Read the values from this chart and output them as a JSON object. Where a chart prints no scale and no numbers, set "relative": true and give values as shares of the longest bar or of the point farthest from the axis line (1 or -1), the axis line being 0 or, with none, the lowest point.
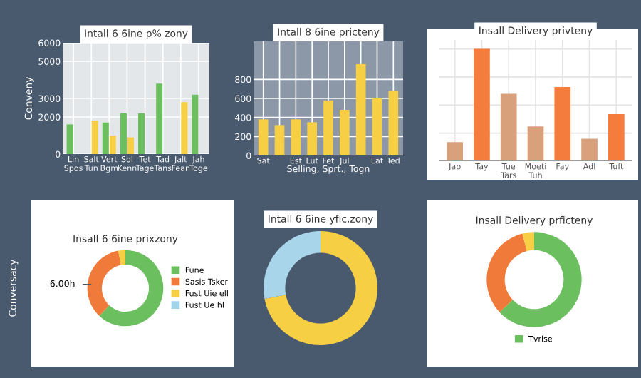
{
  "chart_data": [
    {
      "type": "bar",
      "title": "Intall 6 6ine p% zony",
      "ylabel": "Conveny",
      "categories": [
        "Lin\nSpos",
        "Salt\nTun",
        "Vert\nBgm",
        "Sol\nKenn",
        "Tet\nTage",
        "Tad\nTans",
        "Jalt\nFean",
        "Jah\nToge"
      ],
      "series": [
        {
          "color": "#6cbf5e",
          "values": [
            1600,
            null,
            1700,
            2200,
            2200,
            3800,
            null,
            3200
          ]
        },
        {
          "color": "#f7cf45",
          "values": [
            null,
            1800,
            1000,
            900,
            null,
            null,
            2800,
            null
          ]
        }
      ],
      "ylim": [
        0,
        6000
      ],
      "yticks": [
        0,
        2000,
        3000,
        5000,
        6000
      ],
      "grid": true
    },
    {
      "type": "bar",
      "title": "Intall 8 6ine pricteny",
      "xlabel": "Selling, Sprt., Togn",
      "categories": [
        "Sat",
        null,
        "Est",
        "Lut",
        "Fet",
        "Jul",
        null,
        "Lat",
        "Ted"
      ],
      "values": [
        380,
        320,
        380,
        350,
        580,
        480,
        960,
        600,
        680
      ],
      "color": "#f7cf45",
      "ylim": [
        0,
        1200
      ],
      "yticks": [
        0,
        200,
        400,
        600,
        800
      ],
      "grid": true
    },
    {
      "type": "bar",
      "title": "Insall Delivery privteny",
      "relative": true,
      "categories": [
        "Jap",
        "Tay",
        "Tue\nTars",
        "Moeti\nTuh",
        "Fay",
        "Adl",
        "Tuft"
      ],
      "values": [
        0.17,
        1,
        0.6,
        0.31,
        0.66,
        0.2,
        0.42
      ],
      "colors": [
        "#d9a07c",
        "#f47c3c",
        "#d9a07c",
        "#d9a07c",
        "#f47c3c",
        "#d9a07c",
        "#f47c3c"
      ],
      "grid": true
    },
    {
      "type": "donut",
      "title": "Insall 6 6ine prixzony",
      "ylabel": "Conversacy",
      "categories": [
        "Fune",
        "Sasis Tsker",
        "Fust Uie ell",
        "Fust Ue hl"
      ],
      "values": [
        62,
        35,
        3,
        0
      ],
      "colors": [
        "#6cbf5e",
        "#f07a3a",
        "#f7cf45",
        "#9fd3ea"
      ],
      "legend": "right",
      "annotations": [
        "6.00h"
      ]
    },
    {
      "type": "donut",
      "title": "Intall 6 6ine yfic.zony",
      "categories": [
        null,
        null
      ],
      "values": [
        72,
        28
      ],
      "colors": [
        "#f7cf45",
        "#a8d5ea"
      ]
    },
    {
      "type": "donut",
      "title": "Insall Delivery prficteny",
      "categories": [
        "Tvrlse",
        null,
        null
      ],
      "values": [
        63,
        33,
        4
      ],
      "colors": [
        "#6cbf5e",
        "#f07a3a",
        "#f7cf45"
      ],
      "legend": "bottom"
    }
  ]
}
